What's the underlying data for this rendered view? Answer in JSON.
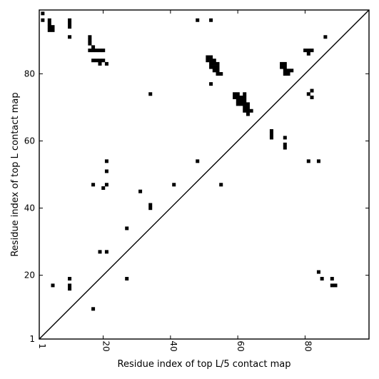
{
  "chart_data": {
    "type": "heatmap",
    "title": "",
    "xlabel": "Residue index of top L/5 contact map",
    "ylabel": "Residue index of top L contact map",
    "xlim": [
      1,
      99
    ],
    "ylim": [
      1,
      99
    ],
    "xticks": [
      1,
      20,
      40,
      60,
      80
    ],
    "yticks": [
      1,
      20,
      40,
      60,
      80
    ],
    "diagonal": true,
    "cell_color": "#000000",
    "cells": [
      [
        2,
        98
      ],
      [
        2,
        96
      ],
      [
        4,
        96
      ],
      [
        4,
        95
      ],
      [
        4,
        94
      ],
      [
        5,
        94
      ],
      [
        4,
        93
      ],
      [
        5,
        93
      ],
      [
        10,
        96
      ],
      [
        10,
        95
      ],
      [
        10,
        94
      ],
      [
        10,
        91
      ],
      [
        48,
        96
      ],
      [
        52,
        96
      ],
      [
        86,
        91
      ],
      [
        16,
        91
      ],
      [
        16,
        90
      ],
      [
        16,
        89
      ],
      [
        17,
        88
      ],
      [
        17,
        87
      ],
      [
        18,
        87
      ],
      [
        19,
        87
      ],
      [
        20,
        87
      ],
      [
        16,
        87
      ],
      [
        80,
        87
      ],
      [
        81,
        87
      ],
      [
        82,
        87
      ],
      [
        81,
        86
      ],
      [
        17,
        84
      ],
      [
        18,
        84
      ],
      [
        19,
        84
      ],
      [
        20,
        84
      ],
      [
        19,
        83
      ],
      [
        21,
        83
      ],
      [
        51,
        85
      ],
      [
        52,
        85
      ],
      [
        51,
        84
      ],
      [
        52,
        84
      ],
      [
        53,
        84
      ],
      [
        52,
        83
      ],
      [
        53,
        83
      ],
      [
        54,
        83
      ],
      [
        52,
        82
      ],
      [
        53,
        82
      ],
      [
        54,
        82
      ],
      [
        54,
        81
      ],
      [
        53,
        81
      ],
      [
        54,
        80
      ],
      [
        55,
        80
      ],
      [
        52,
        77
      ],
      [
        73,
        83
      ],
      [
        74,
        83
      ],
      [
        73,
        82
      ],
      [
        74,
        82
      ],
      [
        74,
        81
      ],
      [
        75,
        81
      ],
      [
        76,
        81
      ],
      [
        74,
        80
      ],
      [
        75,
        80
      ],
      [
        34,
        74
      ],
      [
        59,
        74
      ],
      [
        60,
        74
      ],
      [
        62,
        74
      ],
      [
        59,
        73
      ],
      [
        60,
        73
      ],
      [
        61,
        73
      ],
      [
        62,
        73
      ],
      [
        81,
        74
      ],
      [
        82,
        75
      ],
      [
        82,
        73
      ],
      [
        60,
        72
      ],
      [
        61,
        72
      ],
      [
        62,
        72
      ],
      [
        60,
        71
      ],
      [
        61,
        71
      ],
      [
        62,
        71
      ],
      [
        63,
        71
      ],
      [
        62,
        70
      ],
      [
        63,
        70
      ],
      [
        62,
        69
      ],
      [
        63,
        69
      ],
      [
        64,
        69
      ],
      [
        63,
        68
      ],
      [
        70,
        63
      ],
      [
        70,
        62
      ],
      [
        70,
        61
      ],
      [
        74,
        61
      ],
      [
        74,
        59
      ],
      [
        74,
        58
      ],
      [
        21,
        54
      ],
      [
        48,
        54
      ],
      [
        81,
        54
      ],
      [
        84,
        54
      ],
      [
        21,
        51
      ],
      [
        17,
        47
      ],
      [
        21,
        47
      ],
      [
        20,
        46
      ],
      [
        41,
        47
      ],
      [
        55,
        47
      ],
      [
        31,
        45
      ],
      [
        34,
        41
      ],
      [
        34,
        40
      ],
      [
        27,
        34
      ],
      [
        19,
        27
      ],
      [
        21,
        27
      ],
      [
        84,
        21
      ],
      [
        27,
        19
      ],
      [
        85,
        19
      ],
      [
        88,
        19
      ],
      [
        10,
        19
      ],
      [
        5,
        17
      ],
      [
        88,
        17
      ],
      [
        89,
        17
      ],
      [
        10,
        17
      ],
      [
        10,
        16
      ],
      [
        17,
        10
      ]
    ]
  }
}
